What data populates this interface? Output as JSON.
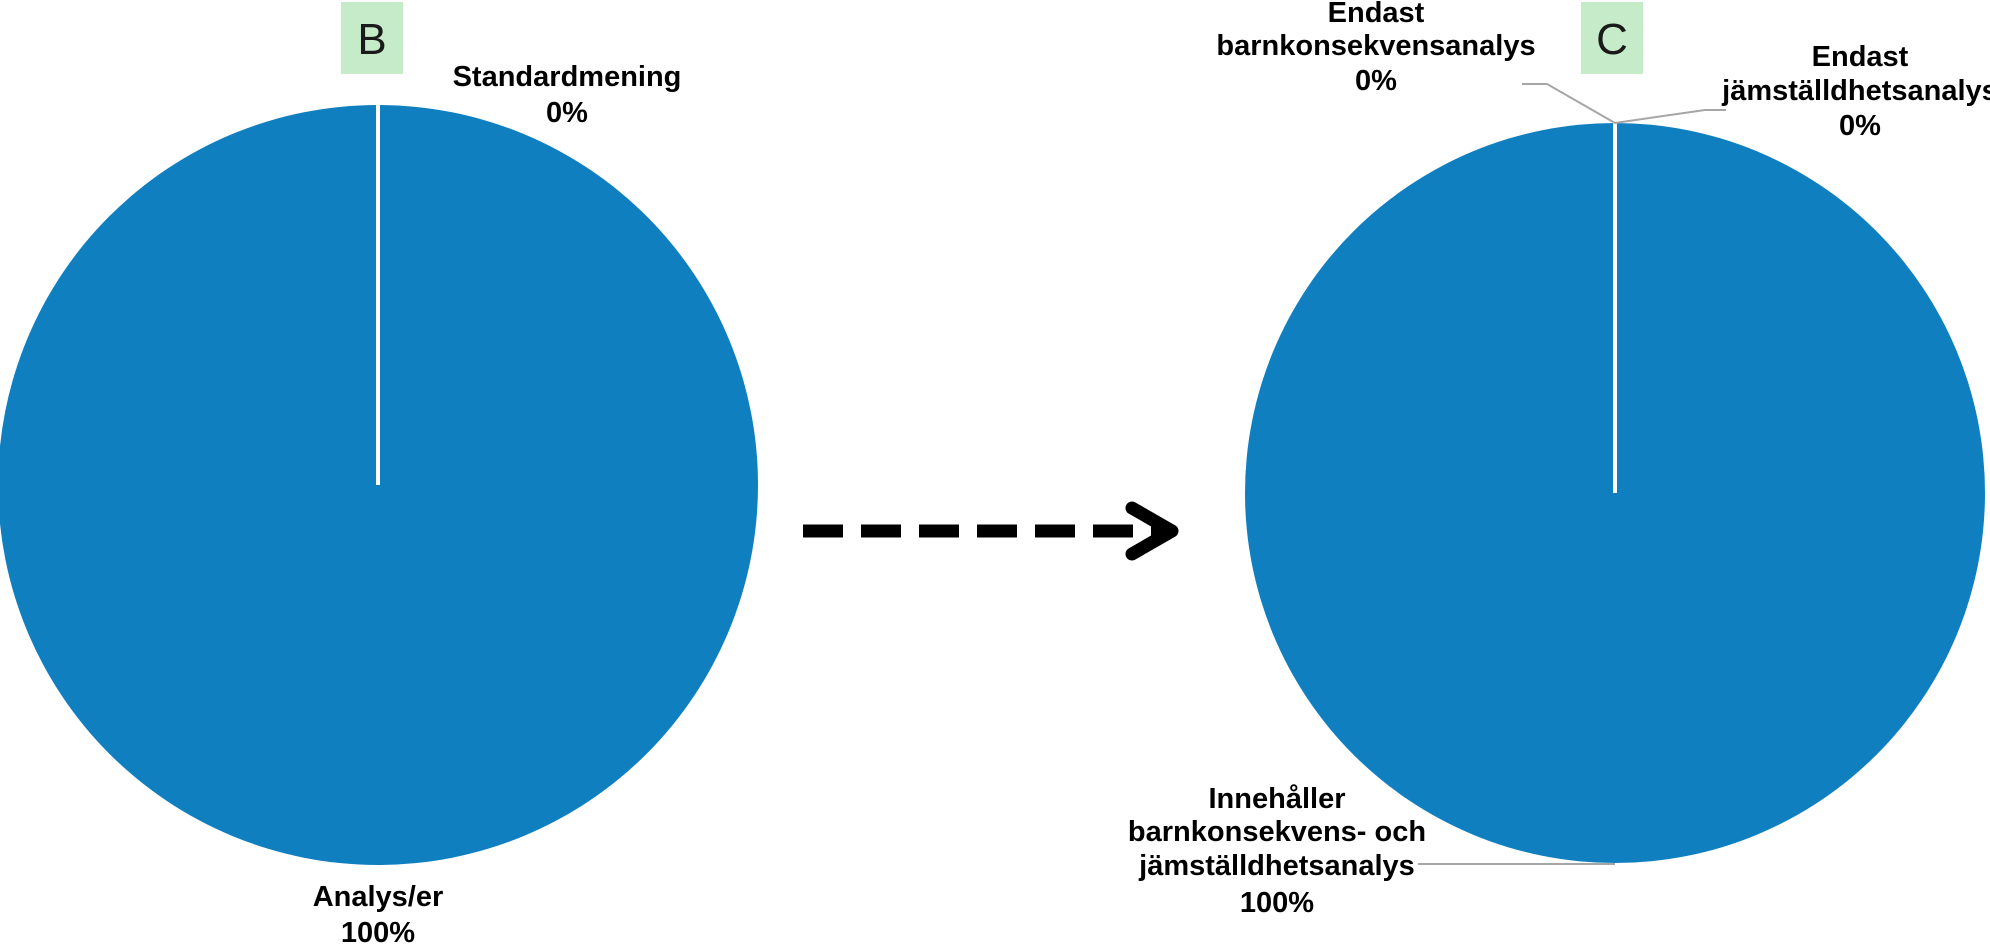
{
  "colors": {
    "pie": "#0f7fc0",
    "separator": "#ffffff",
    "badge_bg": "#c6ebc9",
    "leader": "#a6a6a6",
    "arrow": "#000000"
  },
  "arrow": {
    "style": "dashed",
    "direction": "right"
  },
  "chart_data": [
    {
      "type": "pie",
      "badge": "B",
      "title": "",
      "slices": [
        {
          "name": "Standardmening",
          "percent_label": "0%",
          "value": 0
        },
        {
          "name": "Analys/er",
          "percent_label": "100%",
          "value": 100
        }
      ]
    },
    {
      "type": "pie",
      "badge": "C",
      "title": "",
      "slices": [
        {
          "name": "Endast barnkonsekvensanalys",
          "name_lines": [
            "Endast",
            "barnkonsekvensanalys"
          ],
          "percent_label": "0%",
          "value": 0
        },
        {
          "name": "Endast jämställdhetsanalys",
          "name_lines": [
            "Endast",
            "jämställdhetsanalys"
          ],
          "percent_label": "0%",
          "value": 0
        },
        {
          "name": "Innehåller barnkonsekvens- och jämställdhetsanalys",
          "name_lines": [
            "Innehåller",
            "barnkonsekvens- och",
            "jämställdhetsanalys"
          ],
          "percent_label": "100%",
          "value": 100
        }
      ]
    }
  ]
}
